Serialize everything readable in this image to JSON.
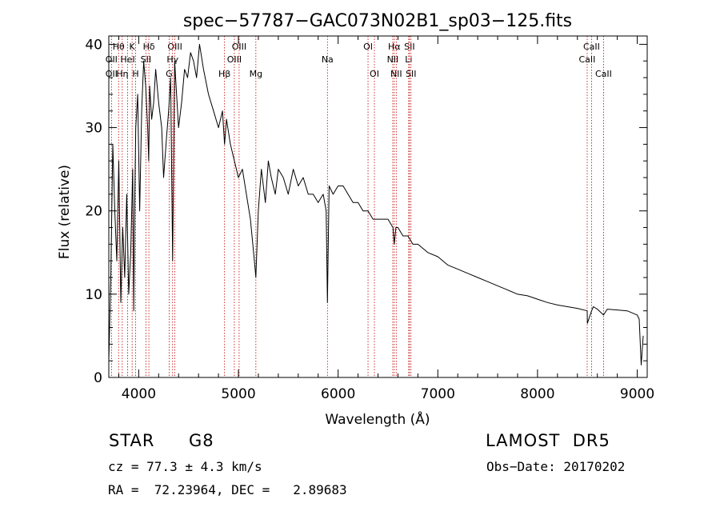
{
  "chart_data": {
    "type": "line",
    "title": "spec−57787−GAC073N02B1_sp03−125.fits",
    "xlabel": "Wavelength (Å)",
    "ylabel": "Flux (relative)",
    "xlim": [
      3700,
      9100
    ],
    "ylim": [
      0,
      41
    ],
    "xticks": [
      4000,
      5000,
      6000,
      7000,
      8000,
      9000
    ],
    "yticks": [
      0,
      10,
      20,
      30,
      40
    ],
    "line_color": "#000000",
    "marker_color": "#c00000",
    "series": [
      {
        "x": [
          3700,
          3720,
          3740,
          3760,
          3780,
          3800,
          3820,
          3840,
          3860,
          3880,
          3900,
          3920,
          3940,
          3950,
          3960,
          3970,
          3990,
          4010,
          4030,
          4050,
          4070,
          4090,
          4100,
          4110,
          4130,
          4150,
          4170,
          4200,
          4230,
          4250,
          4280,
          4300,
          4320,
          4340,
          4360,
          4380,
          4400,
          4430,
          4460,
          4490,
          4520,
          4550,
          4580,
          4610,
          4650,
          4700,
          4750,
          4800,
          4840,
          4861,
          4880,
          4920,
          4960,
          5000,
          5040,
          5080,
          5120,
          5160,
          5175,
          5200,
          5230,
          5270,
          5300,
          5330,
          5370,
          5400,
          5450,
          5500,
          5550,
          5600,
          5650,
          5700,
          5750,
          5800,
          5850,
          5880,
          5893,
          5910,
          5950,
          6000,
          6050,
          6100,
          6150,
          6200,
          6250,
          6300,
          6350,
          6400,
          6450,
          6500,
          6550,
          6563,
          6580,
          6600,
          6650,
          6700,
          6750,
          6800,
          6850,
          6900,
          7000,
          7100,
          7200,
          7300,
          7400,
          7500,
          7600,
          7700,
          7800,
          7900,
          8000,
          8100,
          8200,
          8300,
          8400,
          8498,
          8500,
          8542,
          8560,
          8600,
          8662,
          8700,
          8800,
          8900,
          9000,
          9020,
          9040,
          9060
        ],
        "y": [
          2,
          12,
          28,
          20,
          14,
          26,
          9,
          18,
          12,
          22,
          10,
          15,
          25,
          8,
          21,
          30,
          34,
          20,
          32,
          38,
          35,
          30,
          26,
          35,
          31,
          33,
          37,
          33,
          30,
          24,
          29,
          32,
          36,
          14,
          38,
          34,
          30,
          33,
          37,
          36,
          39,
          38,
          36,
          40,
          37,
          34,
          32,
          30,
          32,
          28,
          31,
          28,
          26,
          24,
          25,
          22,
          19,
          14,
          12,
          20,
          25,
          21,
          26,
          24,
          22,
          25,
          24,
          22,
          25,
          23,
          24,
          22,
          22,
          21,
          22,
          20,
          9,
          23,
          22,
          23,
          23,
          22,
          21,
          21,
          20,
          20,
          19,
          19,
          19,
          19,
          18,
          16,
          18,
          18,
          17,
          17,
          16,
          16,
          15.5,
          15,
          14.5,
          13.5,
          13,
          12.5,
          12,
          11.5,
          11,
          10.5,
          10,
          9.8,
          9.4,
          9,
          8.7,
          8.5,
          8.3,
          8,
          6.5,
          8,
          8.5,
          8.2,
          7.5,
          8.2,
          8.1,
          8,
          7.5,
          7,
          1.5,
          5
        ]
      }
    ],
    "lines": [
      {
        "label": "Hθ",
        "x": 3798,
        "row": 1
      },
      {
        "label": "OII",
        "x": 3727,
        "row": 2
      },
      {
        "label": "OII",
        "x": 3727,
        "row": 3
      },
      {
        "label": "K",
        "x": 3934,
        "row": 1
      },
      {
        "label": "HeI",
        "x": 3889,
        "row": 2
      },
      {
        "label": "Hη",
        "x": 3835,
        "row": 3
      },
      {
        "label": "H",
        "x": 3969,
        "row": 3
      },
      {
        "label": "Hδ",
        "x": 4102,
        "row": 1
      },
      {
        "label": "SII",
        "x": 4072,
        "row": 2
      },
      {
        "label": "OIII",
        "x": 4363,
        "row": 1
      },
      {
        "label": "Hγ",
        "x": 4340,
        "row": 2
      },
      {
        "label": "G",
        "x": 4305,
        "row": 3
      },
      {
        "label": "OIII",
        "x": 5007,
        "row": 1
      },
      {
        "label": "OIII",
        "x": 4959,
        "row": 2
      },
      {
        "label": "Hβ",
        "x": 4861,
        "row": 3
      },
      {
        "label": "Mg",
        "x": 5175,
        "row": 3
      },
      {
        "label": "Na",
        "x": 5893,
        "row": 2
      },
      {
        "label": "OI",
        "x": 6300,
        "row": 1
      },
      {
        "label": "OI",
        "x": 6364,
        "row": 3
      },
      {
        "label": "Hα",
        "x": 6563,
        "row": 1
      },
      {
        "label": "SII",
        "x": 6716,
        "row": 1
      },
      {
        "label": "NII",
        "x": 6548,
        "row": 2
      },
      {
        "label": "Li",
        "x": 6708,
        "row": 2
      },
      {
        "label": "NII",
        "x": 6583,
        "row": 3
      },
      {
        "label": "SII",
        "x": 6731,
        "row": 3
      },
      {
        "label": "CaII",
        "x": 8542,
        "row": 1
      },
      {
        "label": "CaII",
        "x": 8498,
        "row": 2
      },
      {
        "label": "CaII",
        "x": 8662,
        "row": 3
      }
    ]
  },
  "info": {
    "object_class": "STAR",
    "subclass": "G8",
    "survey": "LAMOST  DR5",
    "velocity": "cz = 77.3 ± 4.3 km/s",
    "obs_date": "Obs−Date: 20170202",
    "coords": "RA =  72.23964, DEC =   2.89683"
  }
}
